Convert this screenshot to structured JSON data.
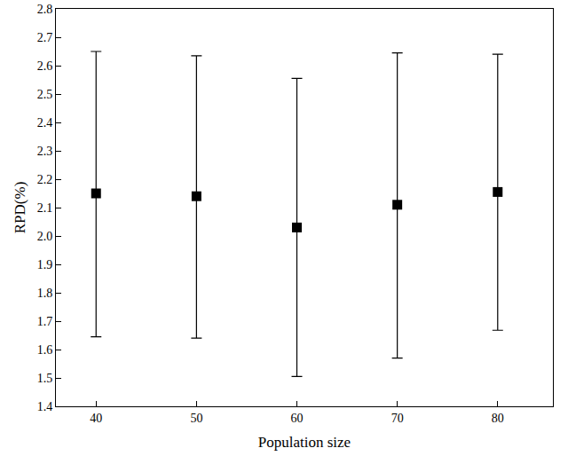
{
  "chart_data": {
    "type": "scatter",
    "x_label": "Population size",
    "y_label": "RPD(%)",
    "x": [
      40,
      50,
      60,
      70,
      80
    ],
    "values": [
      2.15,
      2.14,
      2.03,
      2.11,
      2.155
    ],
    "error_plus": [
      0.5,
      0.495,
      0.525,
      0.535,
      0.485
    ],
    "error_minus": [
      0.505,
      0.5,
      0.525,
      0.54,
      0.487
    ],
    "color": "#000000",
    "marker": "square",
    "xlim": [
      36,
      85.5
    ],
    "xticks": [
      40,
      50,
      60,
      70,
      80
    ],
    "ylim": [
      1.4,
      2.8
    ],
    "yticks": [
      1.4,
      1.5,
      1.6,
      1.7,
      1.8,
      1.9,
      {
        "value": 2,
        "label": "2.0"
      },
      2.1,
      2.2,
      2.3,
      2.4,
      2.5,
      2.6,
      2.7,
      2.8
    ],
    "grid": false
  }
}
